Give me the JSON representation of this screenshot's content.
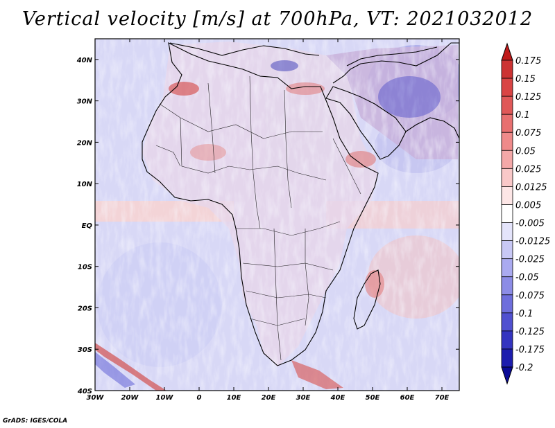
{
  "chart_data": {
    "type": "heatmap",
    "title": "Vertical velocity [m/s] at 700hPa, VT: 2021032012",
    "credit": "GrADS: IGES/COLA",
    "x_axis": {
      "range": [
        -30,
        75
      ],
      "ticks": [
        {
          "value": -30,
          "label": "30W"
        },
        {
          "value": -20,
          "label": "20W"
        },
        {
          "value": -10,
          "label": "10W"
        },
        {
          "value": 0,
          "label": "0"
        },
        {
          "value": 10,
          "label": "10E"
        },
        {
          "value": 20,
          "label": "20E"
        },
        {
          "value": 30,
          "label": "30E"
        },
        {
          "value": 40,
          "label": "40E"
        },
        {
          "value": 50,
          "label": "50E"
        },
        {
          "value": 60,
          "label": "60E"
        },
        {
          "value": 70,
          "label": "70E"
        }
      ]
    },
    "y_axis": {
      "range": [
        -40,
        45
      ],
      "ticks": [
        {
          "value": 40,
          "label": "40N"
        },
        {
          "value": 30,
          "label": "30N"
        },
        {
          "value": 20,
          "label": "20N"
        },
        {
          "value": 10,
          "label": "10N"
        },
        {
          "value": 0,
          "label": "EQ"
        },
        {
          "value": -10,
          "label": "10S"
        },
        {
          "value": -20,
          "label": "20S"
        },
        {
          "value": -30,
          "label": "30S"
        },
        {
          "value": -40,
          "label": "40S"
        }
      ]
    },
    "colorbar": {
      "labels": [
        "0.175",
        "0.15",
        "0.125",
        "0.1",
        "0.075",
        "0.05",
        "0.025",
        "0.0125",
        "0.005",
        "-0.005",
        "-0.0125",
        "-0.025",
        "-0.05",
        "-0.075",
        "-0.1",
        "-0.125",
        "-0.175",
        "-0.2"
      ],
      "colors": [
        "#bf1a1a",
        "#cc3333",
        "#d94444",
        "#e05858",
        "#e87070",
        "#ef8a8a",
        "#f4a8a8",
        "#f9c8c8",
        "#fde6e6",
        "#ffffff",
        "#e4e4fb",
        "#c8c8f5",
        "#aaaaf0",
        "#8c8ce6",
        "#6e6edc",
        "#5050d0",
        "#3434c0",
        "#1c1cae",
        "#0a0a96"
      ]
    }
  }
}
